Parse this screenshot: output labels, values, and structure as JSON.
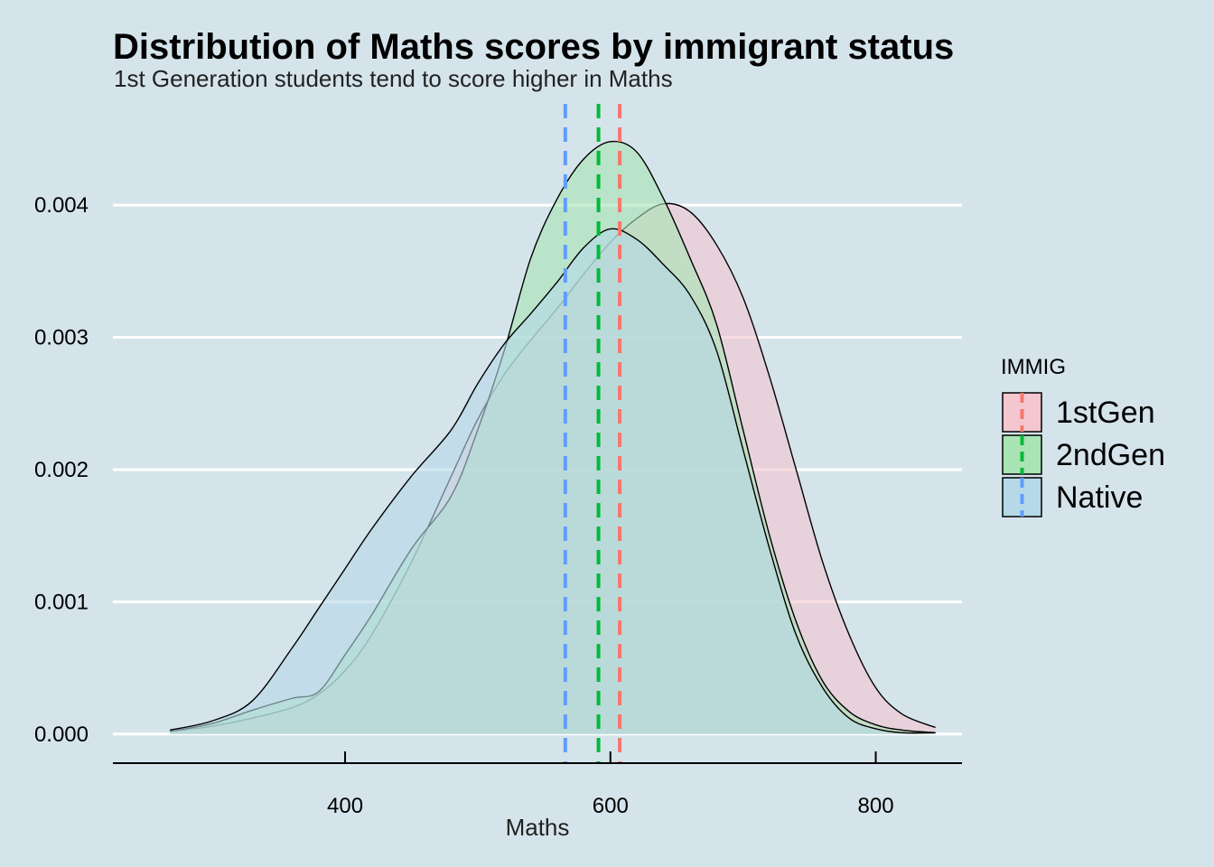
{
  "chart_data": {
    "type": "area",
    "title": "Distribution of Maths scores by immigrant status",
    "subtitle": "1st Generation students tend to score higher in Maths",
    "xlabel": "Maths",
    "ylabel": "",
    "xlim": [
      225,
      865
    ],
    "ylim": [
      -0.00022,
      0.0048
    ],
    "x_ticks": [
      400,
      600,
      800
    ],
    "y_ticks": [
      0.0,
      0.001,
      0.002,
      0.003,
      0.004
    ],
    "y_tick_labels": [
      "0.000",
      "0.001",
      "0.002",
      "0.003",
      "0.004"
    ],
    "grid": "horizontal major lines",
    "background": "#d5e4eb",
    "legend": {
      "title": "IMMIG",
      "placement": "right"
    },
    "series": [
      {
        "name": "1stGen",
        "fill": "#f4c6d0",
        "line": "#f8766d",
        "mean": 607,
        "x": [
          268,
          300,
          330,
          360,
          380,
          400,
          420,
          450,
          480,
          500,
          520,
          540,
          560,
          580,
          600,
          620,
          640,
          660,
          680,
          700,
          720,
          740,
          760,
          780,
          800,
          820,
          845
        ],
        "y": [
          2e-05,
          6e-05,
          0.00012,
          0.0002,
          0.0003,
          0.00048,
          0.00075,
          0.0013,
          0.00195,
          0.00238,
          0.00272,
          0.00298,
          0.00322,
          0.00348,
          0.00372,
          0.0039,
          0.00401,
          0.00395,
          0.0037,
          0.0033,
          0.0027,
          0.002,
          0.0013,
          0.00075,
          0.00035,
          0.00015,
          5e-05
        ]
      },
      {
        "name": "2ndGen",
        "fill": "#a8e4b4",
        "line": "#00ba38",
        "mean": 591,
        "x": [
          268,
          300,
          330,
          360,
          380,
          400,
          420,
          450,
          480,
          500,
          520,
          540,
          560,
          580,
          600,
          620,
          640,
          660,
          680,
          700,
          720,
          740,
          760,
          780,
          800,
          820,
          845
        ],
        "y": [
          2e-05,
          8e-05,
          0.00018,
          0.00027,
          0.00032,
          0.0006,
          0.0009,
          0.0014,
          0.0018,
          0.0023,
          0.0029,
          0.0036,
          0.00405,
          0.00435,
          0.00448,
          0.0044,
          0.00405,
          0.0036,
          0.0031,
          0.0023,
          0.0015,
          0.00085,
          0.0004,
          0.00017,
          7e-05,
          3e-05,
          1e-05
        ]
      },
      {
        "name": "Native",
        "fill": "#b5d9e8",
        "line": "#619cff",
        "mean": 566,
        "x": [
          268,
          300,
          330,
          360,
          380,
          400,
          420,
          450,
          480,
          500,
          520,
          540,
          560,
          580,
          600,
          620,
          640,
          660,
          680,
          700,
          720,
          740,
          760,
          780,
          800,
          820,
          845
        ],
        "y": [
          3e-05,
          0.0001,
          0.00025,
          0.00065,
          0.00095,
          0.00125,
          0.00155,
          0.00195,
          0.0023,
          0.00265,
          0.00295,
          0.00318,
          0.00342,
          0.00368,
          0.00382,
          0.00374,
          0.00355,
          0.00332,
          0.0029,
          0.00215,
          0.0014,
          0.00075,
          0.00035,
          0.00012,
          4e-05,
          1e-05,
          1e-05
        ]
      }
    ]
  }
}
